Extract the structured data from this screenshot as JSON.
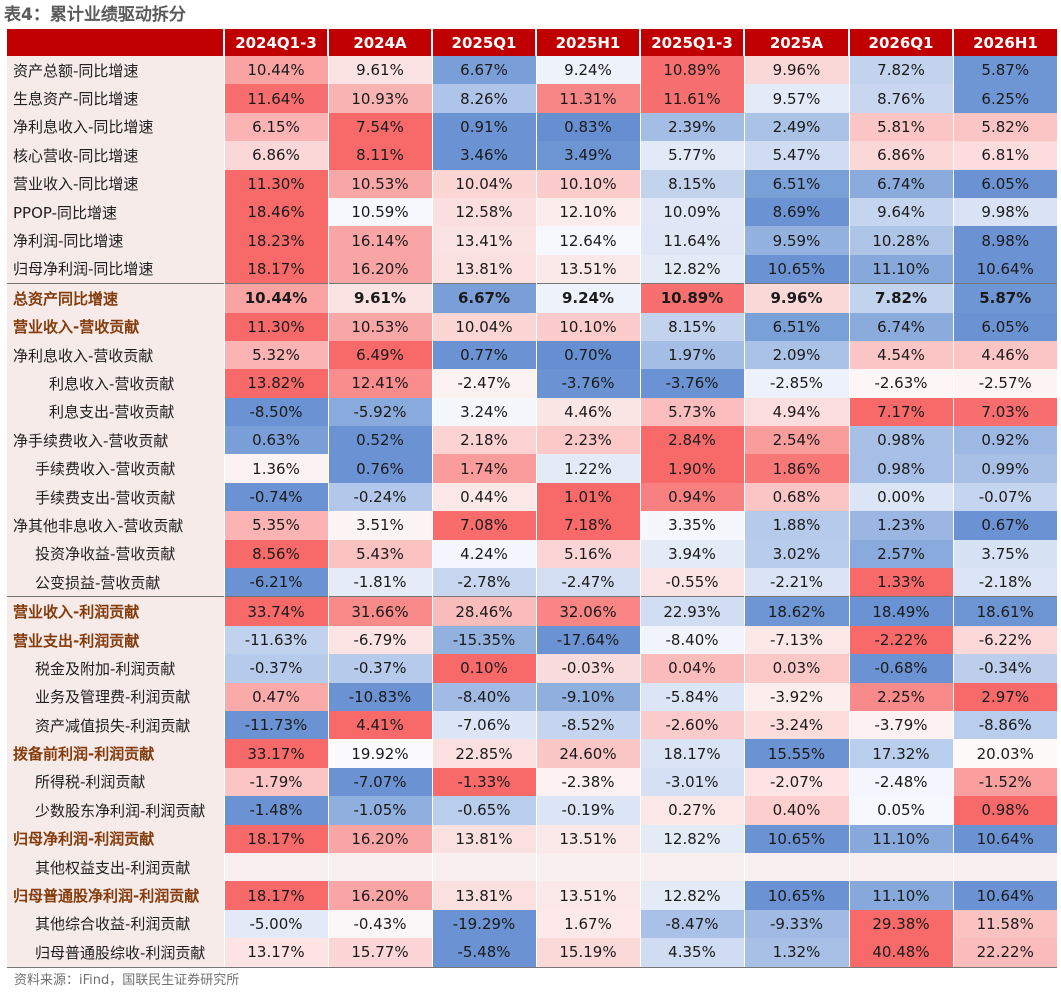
{
  "title": "表4：累计业绩驱动拆分",
  "columns": [
    "2024Q1-3",
    "2024A",
    "2025Q1",
    "2025H1",
    "2025Q1-3",
    "2025A",
    "2026Q1",
    "2026H1"
  ],
  "rows": [
    {
      "label": "资产总额-同比增速",
      "values": [
        "10.44%",
        "9.61%",
        "6.67%",
        "9.24%",
        "10.89%",
        "9.96%",
        "7.82%",
        "5.87%"
      ],
      "fills": [
        "#f9a3a3",
        "#fbe3e3",
        "#7a9ed8",
        "#eef2fb",
        "#f76f6f",
        "#fbd8d8",
        "#c2d3ee",
        "#6e96d4"
      ]
    },
    {
      "label": "生息资产-同比增速",
      "values": [
        "11.64%",
        "10.93%",
        "8.26%",
        "11.31%",
        "11.61%",
        "9.57%",
        "8.76%",
        "6.25%"
      ],
      "fills": [
        "#f86d6d",
        "#f9b3b3",
        "#aec4e8",
        "#f88686",
        "#f86f6f",
        "#e4ebf8",
        "#c8d6f0",
        "#6e95d4"
      ]
    },
    {
      "label": "净利息收入-同比增速",
      "values": [
        "6.15%",
        "7.54%",
        "0.91%",
        "0.83%",
        "2.39%",
        "2.49%",
        "5.81%",
        "5.82%"
      ],
      "fills": [
        "#fbb3b3",
        "#f86a6a",
        "#6b93d3",
        "#668fd1",
        "#a4bde5",
        "#abc2e7",
        "#fcc6c6",
        "#fcc5c5"
      ]
    },
    {
      "label": "核心营收-同比增速",
      "values": [
        "6.86%",
        "8.11%",
        "3.46%",
        "3.49%",
        "5.77%",
        "5.47%",
        "6.86%",
        "6.81%"
      ],
      "fills": [
        "#fcd7d7",
        "#f86a6a",
        "#6b93d3",
        "#6d95d4",
        "#e2e9f7",
        "#cfdcf2",
        "#fcd7d7",
        "#fcdcdc"
      ]
    },
    {
      "label": "营业收入-同比增速",
      "values": [
        "11.30%",
        "10.53%",
        "10.04%",
        "10.10%",
        "8.15%",
        "6.51%",
        "6.74%",
        "6.05%"
      ],
      "fills": [
        "#f86a6a",
        "#f9a6a6",
        "#fcd5d5",
        "#fccccc",
        "#c3d3ee",
        "#7aa0d8",
        "#8aabdc",
        "#6b93d3"
      ]
    },
    {
      "label": "PPOP-同比增速",
      "values": [
        "18.46%",
        "10.59%",
        "12.58%",
        "12.10%",
        "10.09%",
        "8.69%",
        "9.64%",
        "9.98%"
      ],
      "fills": [
        "#f86a6a",
        "#f6f8fd",
        "#fbdede",
        "#fdecec",
        "#e0e8f7",
        "#6b93d3",
        "#c5d5ef",
        "#d9e3f5"
      ]
    },
    {
      "label": "净利润-同比增速",
      "values": [
        "18.23%",
        "16.14%",
        "13.41%",
        "12.64%",
        "11.64%",
        "9.59%",
        "10.28%",
        "8.98%"
      ],
      "fills": [
        "#f86a6a",
        "#f9a5a5",
        "#fbe3e3",
        "#f6f8fd",
        "#dfe7f6",
        "#94b2df",
        "#aec5e8",
        "#6b93d3"
      ]
    },
    {
      "label": "归母净利润-同比增速",
      "values": [
        "18.17%",
        "16.20%",
        "13.81%",
        "13.51%",
        "12.82%",
        "10.65%",
        "11.10%",
        "10.64%"
      ],
      "fills": [
        "#f86a6a",
        "#f9a5a5",
        "#fbe0e0",
        "#fbe8e8",
        "#e3ebf7",
        "#6b93d3",
        "#86a8db",
        "#6b93d3"
      ]
    },
    {
      "label": "总资产同比增速",
      "values": [
        "10.44%",
        "9.61%",
        "6.67%",
        "9.24%",
        "10.89%",
        "9.96%",
        "7.82%",
        "5.87%"
      ],
      "fills": [
        "#f9a3a3",
        "#fbe3e3",
        "#7a9ed8",
        "#eef2fb",
        "#f76f6f",
        "#fbd8d8",
        "#c2d3ee",
        "#6e96d4"
      ]
    },
    {
      "label": "营业收入-营收贡献",
      "values": [
        "11.30%",
        "10.53%",
        "10.04%",
        "10.10%",
        "8.15%",
        "6.51%",
        "6.74%",
        "6.05%"
      ],
      "fills": [
        "#f86a6a",
        "#f9a6a6",
        "#fcd5d5",
        "#fccccc",
        "#c3d3ee",
        "#7aa0d8",
        "#8aabdc",
        "#6b93d3"
      ]
    },
    {
      "label": "净利息收入-营收贡献",
      "values": [
        "5.32%",
        "6.49%",
        "0.77%",
        "0.70%",
        "1.97%",
        "2.09%",
        "4.54%",
        "4.46%"
      ],
      "fills": [
        "#fbb3b3",
        "#f86a6a",
        "#6b93d3",
        "#668fd1",
        "#a4bde5",
        "#abc2e7",
        "#fcc6c6",
        "#fcc5c5"
      ]
    },
    {
      "label": "利息收入-营收贡献",
      "values": [
        "13.82%",
        "12.41%",
        "-2.47%",
        "-3.76%",
        "-3.76%",
        "-2.85%",
        "-2.63%",
        "-2.57%"
      ],
      "fills": [
        "#f86a6a",
        "#f98c8c",
        "#fdf2f2",
        "#6b93d3",
        "#6b93d3",
        "#edf1fb",
        "#fdf6f6",
        "#fdf4f4"
      ]
    },
    {
      "label": "利息支出-营收贡献",
      "values": [
        "-8.50%",
        "-5.92%",
        "3.24%",
        "4.46%",
        "5.73%",
        "4.94%",
        "7.17%",
        "7.03%"
      ],
      "fills": [
        "#6b93d3",
        "#89aadc",
        "#f4f7fc",
        "#fbe6e6",
        "#fbbdbd",
        "#fddede",
        "#f86a6a",
        "#f86e6e"
      ]
    },
    {
      "label": "净手续费收入-营收贡献",
      "values": [
        "0.63%",
        "0.52%",
        "2.18%",
        "2.23%",
        "2.84%",
        "2.54%",
        "0.98%",
        "0.92%"
      ],
      "fills": [
        "#7a9ed8",
        "#6b93d3",
        "#fdd2d2",
        "#fcc8c8",
        "#f86a6a",
        "#f99c9c",
        "#a8c0e6",
        "#9db8e3"
      ]
    },
    {
      "label": "手续费收入-营收贡献",
      "values": [
        "1.36%",
        "0.76%",
        "1.74%",
        "1.22%",
        "1.90%",
        "1.86%",
        "0.98%",
        "0.99%"
      ],
      "fills": [
        "#fdf2f2",
        "#6b93d3",
        "#fb9c9c",
        "#e3ebf7",
        "#f86a6a",
        "#f87878",
        "#a7bfe6",
        "#a9c0e6"
      ]
    },
    {
      "label": "手续费支出-营收贡献",
      "values": [
        "-0.74%",
        "-0.24%",
        "0.44%",
        "1.01%",
        "0.94%",
        "0.68%",
        "0.00%",
        "-0.07%"
      ],
      "fills": [
        "#6b93d3",
        "#b2c7e9",
        "#fde8e8",
        "#f86a6a",
        "#f98080",
        "#fbc5c5",
        "#dce5f5",
        "#c6d5ef"
      ]
    },
    {
      "label": "净其他非息收入-营收贡献",
      "values": [
        "5.35%",
        "3.51%",
        "7.08%",
        "7.18%",
        "3.35%",
        "1.88%",
        "1.23%",
        "0.67%"
      ],
      "fills": [
        "#fbb3b3",
        "#fdf5f5",
        "#f86c6c",
        "#f86a6a",
        "#f5f7fc",
        "#b6cbeb",
        "#9bb6e2",
        "#6b93d3"
      ]
    },
    {
      "label": "投资净收益-营收贡献",
      "values": [
        "8.56%",
        "5.43%",
        "4.24%",
        "5.16%",
        "3.94%",
        "3.02%",
        "2.57%",
        "3.75%"
      ],
      "fills": [
        "#f86a6a",
        "#fbc2c2",
        "#f3f6fc",
        "#fbd5d5",
        "#e3ebf7",
        "#b8ccec",
        "#89aadc",
        "#d7e2f4"
      ]
    },
    {
      "label": "公变损益-营收贡献",
      "values": [
        "-6.21%",
        "-1.81%",
        "-2.78%",
        "-2.47%",
        "-0.55%",
        "-2.21%",
        "1.33%",
        "-2.18%"
      ],
      "fills": [
        "#6b93d3",
        "#e5ecf8",
        "#c8d6f0",
        "#d3def3",
        "#fce4e4",
        "#dae4f5",
        "#f86a6a",
        "#dce5f5"
      ]
    },
    {
      "label": "营业收入-利润贡献",
      "values": [
        "33.74%",
        "31.66%",
        "28.46%",
        "32.06%",
        "22.93%",
        "18.62%",
        "18.49%",
        "18.61%"
      ],
      "fills": [
        "#f86a6a",
        "#f98a8a",
        "#fbbcbc",
        "#f98585",
        "#d1ddf3",
        "#6e95d4",
        "#6b93d3",
        "#6d95d4"
      ]
    },
    {
      "label": "营业支出-利润贡献",
      "values": [
        "-11.63%",
        "-6.79%",
        "-15.35%",
        "-17.64%",
        "-8.40%",
        "-7.13%",
        "-2.22%",
        "-6.22%"
      ],
      "fills": [
        "#c1d2ee",
        "#fce4e4",
        "#93b1df",
        "#6b93d3",
        "#f1f4fb",
        "#fde8e8",
        "#f86a6a",
        "#fcd8d8"
      ]
    },
    {
      "label": "税金及附加-利润贡献",
      "values": [
        "-0.37%",
        "-0.37%",
        "0.10%",
        "-0.03%",
        "0.04%",
        "0.03%",
        "-0.68%",
        "-0.34%"
      ],
      "fills": [
        "#b6caeb",
        "#b6caeb",
        "#f86a6a",
        "#fbdcdc",
        "#fcbcbc",
        "#fdc8c8",
        "#6b93d3",
        "#bdceed"
      ]
    },
    {
      "label": "业务及管理费-利润贡献",
      "values": [
        "0.47%",
        "-10.83%",
        "-8.40%",
        "-9.10%",
        "-5.84%",
        "-3.92%",
        "2.25%",
        "2.97%"
      ],
      "fills": [
        "#fbaaaa",
        "#6b93d3",
        "#a1bbe4",
        "#8fafde",
        "#dce5f5",
        "#fdeeee",
        "#f98a8a",
        "#f86a6a"
      ]
    },
    {
      "label": "资产减值损失-利润贡献",
      "values": [
        "-11.73%",
        "4.41%",
        "-7.06%",
        "-8.52%",
        "-2.60%",
        "-3.24%",
        "-3.79%",
        "-8.86%"
      ],
      "fills": [
        "#6b93d3",
        "#f86a6a",
        "#dde6f6",
        "#c6d5ef",
        "#fccccc",
        "#fddcdc",
        "#fdf1f1",
        "#b9cdec"
      ]
    },
    {
      "label": "拨备前利润-利润贡献",
      "values": [
        "33.17%",
        "19.92%",
        "22.85%",
        "24.60%",
        "18.17%",
        "15.55%",
        "17.32%",
        "20.03%"
      ],
      "fills": [
        "#f86a6a",
        "#fbfbfe",
        "#fce0e0",
        "#fbc6c6",
        "#dae4f5",
        "#6b93d3",
        "#b9cdec",
        "#fefafa"
      ]
    },
    {
      "label": "所得税-利润贡献",
      "values": [
        "-1.79%",
        "-7.07%",
        "-1.33%",
        "-2.38%",
        "-3.01%",
        "-2.07%",
        "-2.48%",
        "-1.52%"
      ],
      "fills": [
        "#fcc5c5",
        "#6b93d3",
        "#f86a6a",
        "#fdf1f1",
        "#d6e0f4",
        "#fde3e3",
        "#f3f6fc",
        "#fb9e9e"
      ]
    },
    {
      "label": "少数股东净利润-利润贡献",
      "values": [
        "-1.48%",
        "-1.05%",
        "-0.65%",
        "-0.19%",
        "0.27%",
        "0.40%",
        "0.05%",
        "0.98%"
      ],
      "fills": [
        "#6b93d3",
        "#8fafde",
        "#b9cdec",
        "#dde6f6",
        "#fde8e8",
        "#fccece",
        "#f5f8fc",
        "#f86a6a"
      ]
    },
    {
      "label": "归母净利润-利润贡献",
      "values": [
        "18.17%",
        "16.20%",
        "13.81%",
        "13.51%",
        "12.82%",
        "10.65%",
        "11.10%",
        "10.64%"
      ],
      "fills": [
        "#f86a6a",
        "#f9a5a5",
        "#fbe0e0",
        "#fbe8e8",
        "#e3ebf7",
        "#6b93d3",
        "#86a8db",
        "#6b93d3"
      ]
    },
    {
      "label": "其他权益支出-利润贡献",
      "values": [
        "",
        "",
        "",
        "",
        "",
        "",
        "",
        ""
      ],
      "fills": [
        "#f9efee",
        "#f9efee",
        "#f9efee",
        "#f9efee",
        "#f9efee",
        "#f9efee",
        "#f9efee",
        "#f9efee"
      ]
    },
    {
      "label": "归母普通股净利润-利润贡献",
      "values": [
        "18.17%",
        "16.20%",
        "13.81%",
        "13.51%",
        "12.82%",
        "10.65%",
        "11.10%",
        "10.64%"
      ],
      "fills": [
        "#f86a6a",
        "#f9a5a5",
        "#fbe0e0",
        "#fbe8e8",
        "#e3ebf7",
        "#6b93d3",
        "#86a8db",
        "#6b93d3"
      ]
    },
    {
      "label": "其他综合收益-利润贡献",
      "values": [
        "-5.00%",
        "-0.43%",
        "-19.29%",
        "1.67%",
        "-8.47%",
        "-9.33%",
        "29.38%",
        "11.58%"
      ],
      "fills": [
        "#e2e9f7",
        "#fbf6f8",
        "#6b93d3",
        "#fde9e9",
        "#aac1e7",
        "#a0bae4",
        "#f86a6a",
        "#fbc2c2"
      ]
    },
    {
      "label": "归母普通股综收-利润贡献",
      "values": [
        "13.17%",
        "15.77%",
        "-5.48%",
        "15.19%",
        "4.35%",
        "1.32%",
        "40.48%",
        "22.22%"
      ],
      "fills": [
        "#fde3e3",
        "#fcd6d6",
        "#6b93d3",
        "#fcd9d9",
        "#cfdcf2",
        "#a8c0e6",
        "#f86a6a",
        "#fcbcbc"
      ]
    }
  ],
  "source": "资料来源：iFind，国联民生证券研究所"
}
